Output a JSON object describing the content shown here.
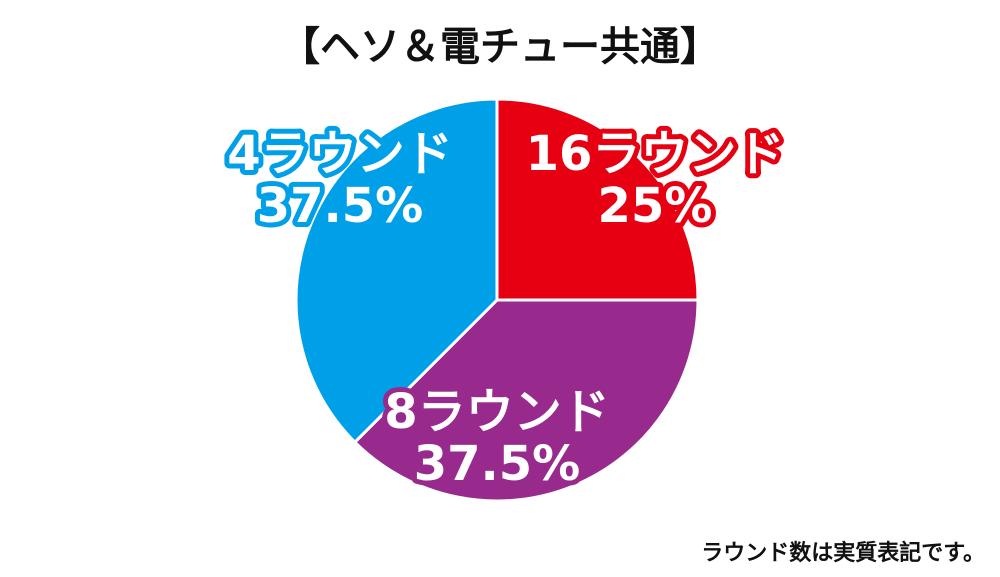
{
  "chart_data": {
    "type": "pie",
    "title": "【ヘソ＆電チュー共通】",
    "slices": [
      {
        "label": "16ラウンド",
        "value": 25,
        "value_label": "25%",
        "color": "#e60012"
      },
      {
        "label": "8ラウンド",
        "value": 37.5,
        "value_label": "37.5%",
        "color": "#982a8d"
      },
      {
        "label": "4ラウンド",
        "value": 37.5,
        "value_label": "37.5%",
        "color": "#00a0e9"
      }
    ],
    "start": "12 o'clock",
    "direction": "clockwise",
    "annotation": "ラウンド数は実質表記です。"
  }
}
